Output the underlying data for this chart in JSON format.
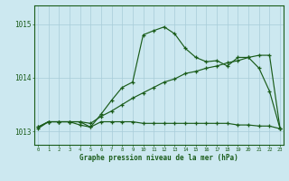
{
  "title": "Graphe pression niveau de la mer (hPa)",
  "xlabel_ticks": [
    0,
    1,
    2,
    3,
    4,
    5,
    6,
    7,
    8,
    9,
    10,
    11,
    12,
    13,
    14,
    15,
    16,
    17,
    18,
    19,
    20,
    21,
    22,
    23
  ],
  "ylim": [
    1012.75,
    1015.35
  ],
  "yticks": [
    1013,
    1014,
    1015
  ],
  "bg_color": "#cce8f0",
  "line_color": "#1a5c1a",
  "grid_color": "#b0d8e0",
  "line1_x": [
    0,
    1,
    2,
    3,
    4,
    5,
    6,
    7,
    8,
    9,
    10,
    11,
    12,
    13,
    14,
    15,
    16,
    17,
    18,
    19,
    20,
    21,
    22,
    23
  ],
  "line1_y": [
    1013.08,
    1013.18,
    1013.18,
    1013.18,
    1013.12,
    1013.08,
    1013.32,
    1013.58,
    1013.82,
    1013.92,
    1014.8,
    1014.88,
    1014.95,
    1014.82,
    1014.55,
    1014.38,
    1014.3,
    1014.32,
    1014.22,
    1014.38,
    1014.38,
    1014.18,
    1013.75,
    1013.05
  ],
  "line2_x": [
    0,
    1,
    2,
    3,
    4,
    5,
    6,
    7,
    8,
    9,
    10,
    11,
    12,
    13,
    14,
    15,
    16,
    17,
    18,
    19,
    20,
    21,
    22,
    23
  ],
  "line2_y": [
    1013.05,
    1013.18,
    1013.18,
    1013.18,
    1013.18,
    1013.15,
    1013.28,
    1013.38,
    1013.5,
    1013.62,
    1013.72,
    1013.82,
    1013.92,
    1013.98,
    1014.08,
    1014.12,
    1014.18,
    1014.22,
    1014.28,
    1014.32,
    1014.38,
    1014.42,
    1014.42,
    1013.05
  ],
  "line3_x": [
    0,
    1,
    2,
    3,
    4,
    5,
    6,
    7,
    8,
    9,
    10,
    11,
    12,
    13,
    14,
    15,
    16,
    17,
    18,
    19,
    20,
    21,
    22,
    23
  ],
  "line3_y": [
    1013.08,
    1013.18,
    1013.18,
    1013.18,
    1013.18,
    1013.08,
    1013.18,
    1013.18,
    1013.18,
    1013.18,
    1013.15,
    1013.15,
    1013.15,
    1013.15,
    1013.15,
    1013.15,
    1013.15,
    1013.15,
    1013.15,
    1013.12,
    1013.12,
    1013.1,
    1013.1,
    1013.05
  ],
  "figsize": [
    3.2,
    2.0
  ],
  "dpi": 100
}
